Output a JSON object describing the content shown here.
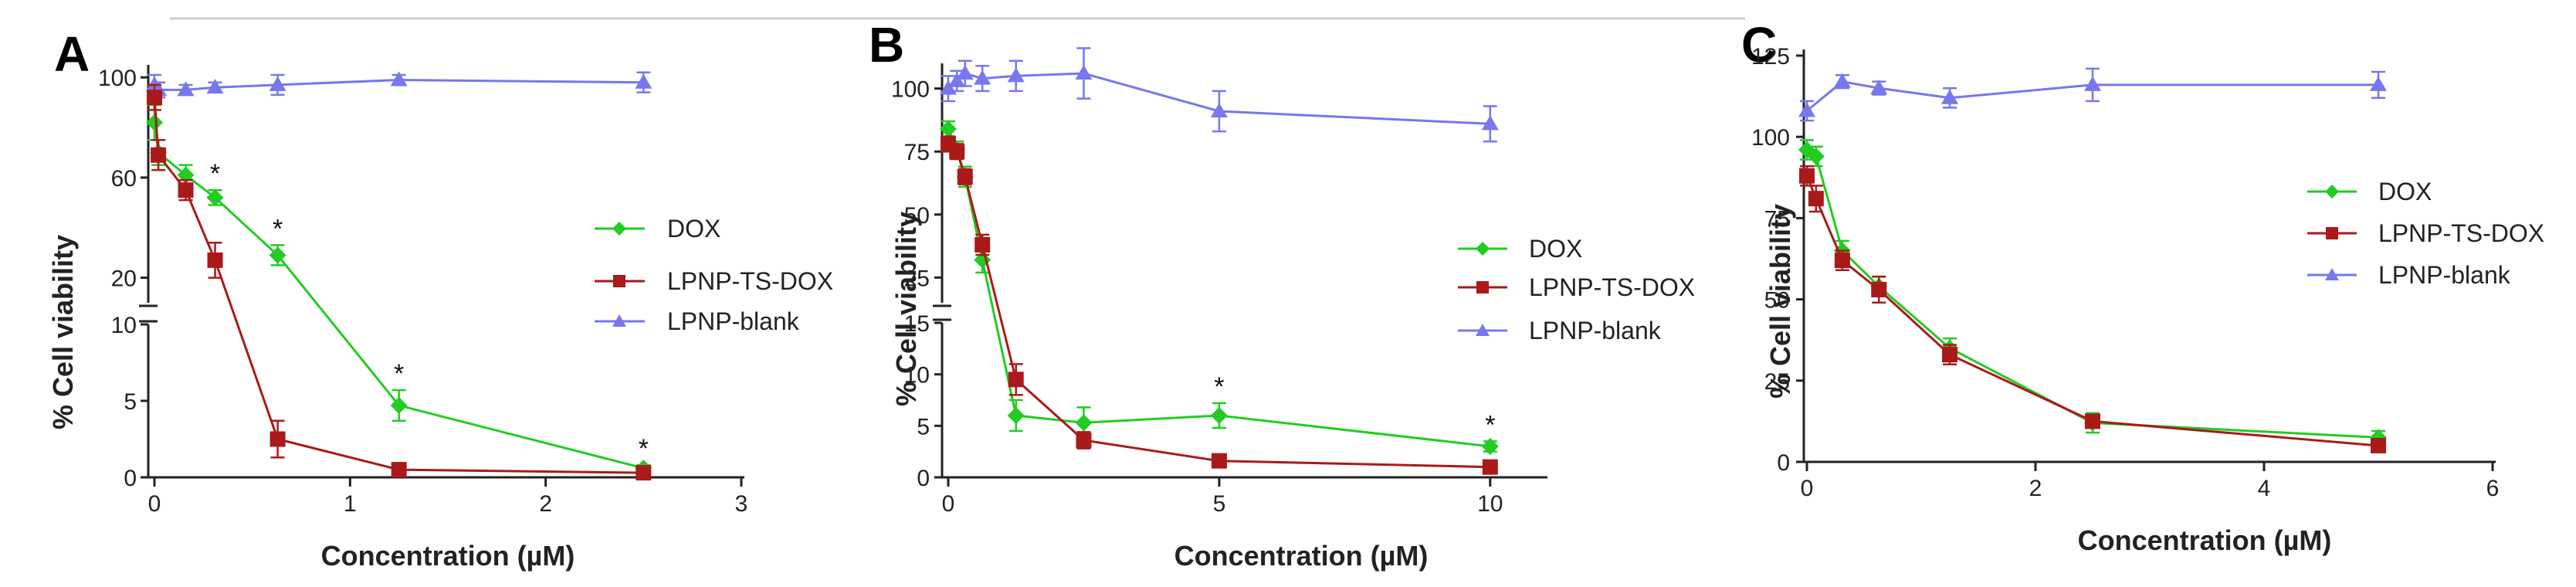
{
  "colors": {
    "DOX": "#22cc22",
    "LPNP-TS-DOX": "#aa1a1a",
    "LPNP-blank": "#7777ee",
    "axis": "#222222"
  },
  "chart_data": [
    {
      "panel": "A",
      "type": "line",
      "xlabel": "Concentration (µM)",
      "ylabel": "% Cell viability",
      "xlim": [
        0,
        3
      ],
      "xticks": [
        "0",
        "1",
        "2",
        "3"
      ],
      "broken_y_axis": {
        "lower": {
          "ylim": [
            0,
            10
          ],
          "ticks": [
            "0",
            "5",
            "10"
          ]
        },
        "upper": {
          "ylim": [
            10,
            105
          ],
          "ticks": [
            "20",
            "60",
            "100"
          ]
        }
      },
      "legend": [
        "DOX",
        "LPNP-TS-DOX",
        "LPNP-blank"
      ],
      "series": [
        {
          "name": "DOX",
          "marker": "diamond",
          "points": [
            [
              0.0,
              82,
              7
            ],
            [
              0.02,
              70,
              5
            ],
            [
              0.16,
              61,
              4
            ],
            [
              0.31,
              52,
              3
            ],
            [
              0.63,
              29,
              4
            ],
            [
              1.25,
              4.7,
              1.0
            ],
            [
              2.5,
              0.6,
              0.2
            ]
          ]
        },
        {
          "name": "LPNP-TS-DOX",
          "marker": "square",
          "points": [
            [
              0.0,
              92,
              5
            ],
            [
              0.02,
              69,
              6
            ],
            [
              0.16,
              55,
              4
            ],
            [
              0.31,
              27,
              7
            ],
            [
              0.63,
              2.5,
              1.2
            ],
            [
              1.25,
              0.5,
              0.2
            ],
            [
              2.5,
              0.3,
              0.2
            ]
          ]
        },
        {
          "name": "LPNP-blank",
          "marker": "triangle",
          "points": [
            [
              0.0,
              97,
              4
            ],
            [
              0.02,
              95,
              3
            ],
            [
              0.16,
              95,
              2
            ],
            [
              0.31,
              96,
              2
            ],
            [
              0.63,
              97,
              4
            ],
            [
              1.25,
              99,
              2
            ],
            [
              2.5,
              98,
              4
            ]
          ]
        }
      ],
      "significance": [
        {
          "x": 0.31,
          "label": "*"
        },
        {
          "x": 0.63,
          "label": "*"
        },
        {
          "x": 1.25,
          "label": "*"
        },
        {
          "x": 2.5,
          "label": "*"
        }
      ]
    },
    {
      "panel": "B",
      "type": "line",
      "xlabel": "Concentration (µM)",
      "ylabel": "% Cell viability",
      "xlim": [
        0,
        11
      ],
      "xticks": [
        "0",
        "5",
        "10"
      ],
      "broken_y_axis": {
        "lower": {
          "ylim": [
            0,
            15
          ],
          "ticks": [
            "0",
            "5",
            "10",
            "15"
          ]
        },
        "upper": {
          "ylim": [
            15,
            110
          ],
          "ticks": [
            "25",
            "50",
            "75",
            "100"
          ]
        }
      },
      "legend": [
        "DOX",
        "LPNP-TS-DOX",
        "LPNP-blank"
      ],
      "series": [
        {
          "name": "DOX",
          "marker": "diamond",
          "points": [
            [
              0.0,
              84,
              3
            ],
            [
              0.16,
              76,
              3
            ],
            [
              0.31,
              65,
              4
            ],
            [
              0.63,
              32,
              5
            ],
            [
              1.25,
              6,
              1.5
            ],
            [
              2.5,
              5.3,
              1.5
            ],
            [
              5,
              6,
              1.2
            ],
            [
              10,
              3,
              0.5
            ]
          ]
        },
        {
          "name": "LPNP-TS-DOX",
          "marker": "square",
          "points": [
            [
              0.0,
              78,
              3
            ],
            [
              0.16,
              75,
              3
            ],
            [
              0.31,
              65,
              3
            ],
            [
              0.63,
              38,
              4
            ],
            [
              1.25,
              9.5,
              1.5
            ],
            [
              2.5,
              3.6,
              0.8
            ],
            [
              5,
              1.6,
              0.4
            ],
            [
              10,
              1.0,
              0.3
            ]
          ]
        },
        {
          "name": "LPNP-blank",
          "marker": "triangle",
          "points": [
            [
              0.0,
              100,
              5
            ],
            [
              0.16,
              103,
              4
            ],
            [
              0.31,
              106,
              5
            ],
            [
              0.63,
              104,
              5
            ],
            [
              1.25,
              105,
              6
            ],
            [
              2.5,
              106,
              10
            ],
            [
              5,
              91,
              8
            ],
            [
              10,
              86,
              7
            ]
          ]
        }
      ],
      "significance": [
        {
          "x": 5,
          "label": "*"
        },
        {
          "x": 10,
          "label": "*"
        }
      ]
    },
    {
      "panel": "C",
      "type": "line",
      "xlabel": "Concentration (µM)",
      "ylabel": "% Cell viability",
      "xlim": [
        0,
        6
      ],
      "xticks": [
        "0",
        "2",
        "4",
        "6"
      ],
      "ylim": [
        0,
        125
      ],
      "yticks": [
        "0",
        "25",
        "50",
        "75",
        "100",
        "125"
      ],
      "legend": [
        "DOX",
        "LPNP-TS-DOX",
        "LPNP-blank"
      ],
      "series": [
        {
          "name": "DOX",
          "marker": "diamond",
          "points": [
            [
              0.0,
              96,
              3
            ],
            [
              0.08,
              94,
              3
            ],
            [
              0.31,
              65,
              3
            ],
            [
              0.63,
              54,
              3
            ],
            [
              1.25,
              35,
              3
            ],
            [
              2.5,
              12,
              3
            ],
            [
              5,
              7.5,
              2
            ]
          ]
        },
        {
          "name": "LPNP-TS-DOX",
          "marker": "square",
          "points": [
            [
              0.0,
              88,
              3
            ],
            [
              0.08,
              81,
              4
            ],
            [
              0.31,
              62,
              3
            ],
            [
              0.63,
              53,
              4
            ],
            [
              1.25,
              33,
              3
            ],
            [
              2.5,
              12.5,
              2
            ],
            [
              5,
              5,
              2
            ]
          ]
        },
        {
          "name": "LPNP-blank",
          "marker": "triangle",
          "points": [
            [
              0.0,
              108,
              3
            ],
            [
              0.31,
              117,
              2
            ],
            [
              0.63,
              115,
              2
            ],
            [
              1.25,
              112,
              3
            ],
            [
              2.5,
              116,
              5
            ],
            [
              5,
              116,
              4
            ]
          ]
        }
      ],
      "significance": []
    }
  ]
}
